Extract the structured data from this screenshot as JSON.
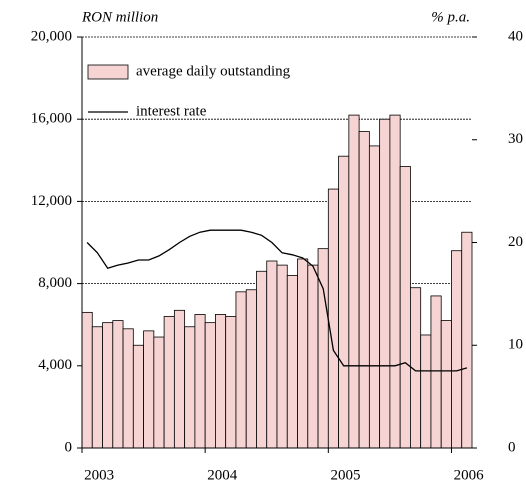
{
  "chart_data": {
    "type": "bar_line",
    "y_label": "RON million",
    "y2_label": "% p.a.",
    "categories": [
      "2003",
      null,
      null,
      null,
      null,
      null,
      null,
      null,
      null,
      null,
      null,
      null,
      "2004",
      null,
      null,
      null,
      null,
      null,
      null,
      null,
      null,
      null,
      null,
      null,
      "2005",
      null,
      null,
      null,
      null,
      null,
      null,
      null,
      null,
      null,
      null,
      null,
      "2006",
      null
    ],
    "series": [
      {
        "name": "average daily outstanding",
        "color": "#f7d4d4",
        "values": [
          6600,
          5900,
          6100,
          6200,
          5800,
          5000,
          5700,
          5400,
          6400,
          6700,
          5900,
          6500,
          6100,
          6500,
          6400,
          7600,
          7700,
          8600,
          9100,
          8900,
          8400,
          9200,
          8900,
          9700,
          12600,
          14200,
          16200,
          15400,
          14700,
          16000,
          16200,
          13700,
          7800,
          5500,
          7400,
          6200,
          9600,
          10500
        ]
      },
      {
        "name": "interest rate",
        "color": "#000000",
        "axis": "y2",
        "values": [
          20,
          19,
          17.5,
          17.8,
          18,
          18.3,
          18.3,
          18.7,
          19.3,
          20,
          20.6,
          21,
          21.2,
          21.2,
          21.2,
          21.2,
          21,
          20.7,
          20,
          19,
          18.8,
          18.5,
          17.7,
          15.5,
          9.5,
          8,
          8,
          8,
          8,
          8,
          8,
          8.3,
          7.5,
          7.5,
          7.5,
          7.5,
          7.5,
          7.8
        ]
      }
    ],
    "ylim": [
      0,
      20000
    ],
    "yticks": [
      0,
      {
        "value": 4000,
        "label": "4,000"
      },
      {
        "value": 8000,
        "label": "8,000"
      },
      {
        "value": 12000,
        "label": "12,000"
      },
      {
        "value": 16000,
        "label": "16,000"
      },
      {
        "value": 20000,
        "label": "20,000"
      }
    ],
    "y2lim": [
      0,
      40
    ],
    "y2ticks": [
      0,
      10,
      20,
      30,
      40
    ],
    "grid": true,
    "legend": "upper left"
  }
}
